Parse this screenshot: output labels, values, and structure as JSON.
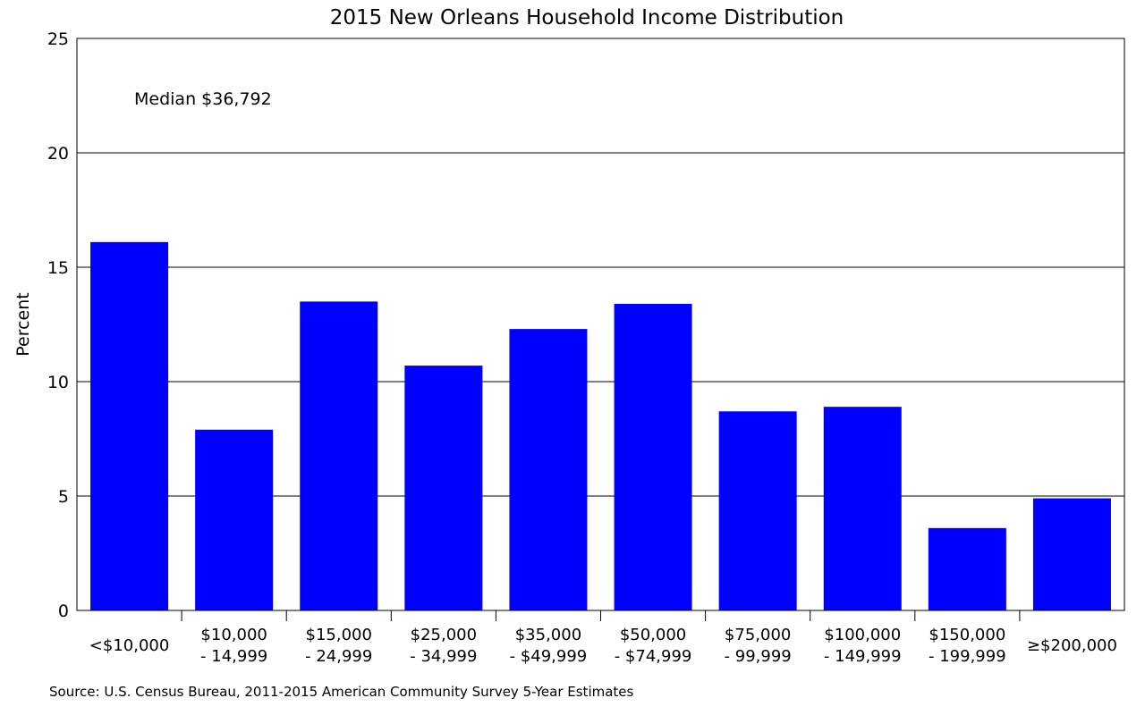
{
  "chart_data": {
    "type": "bar",
    "title": "2015 New Orleans Household Income Distribution",
    "ylabel": "Percent",
    "xlabel": "",
    "ylim": [
      0,
      25
    ],
    "yticks": [
      0,
      5,
      10,
      15,
      20,
      25
    ],
    "grid": true,
    "categories": [
      [
        "<$10,000"
      ],
      [
        "$10,000",
        "- 14,999"
      ],
      [
        "$15,000",
        "- 24,999"
      ],
      [
        "$25,000",
        "- 34,999"
      ],
      [
        "$35,000",
        "- $49,999"
      ],
      [
        "$50,000",
        "- $74,999"
      ],
      [
        "$75,000",
        "- 99,999"
      ],
      [
        "$100,000",
        "- 149,999"
      ],
      [
        "$150,000",
        "- 199,999"
      ],
      [
        "≥$200,000"
      ]
    ],
    "values": [
      16.1,
      7.9,
      13.5,
      10.7,
      12.3,
      13.4,
      8.7,
      8.9,
      3.6,
      4.9
    ],
    "bar_color": "#0000ff",
    "annotation": "Median $36,792",
    "source": "Source: U.S. Census Bureau, 2011-2015 American Community Survey 5-Year Estimates"
  }
}
